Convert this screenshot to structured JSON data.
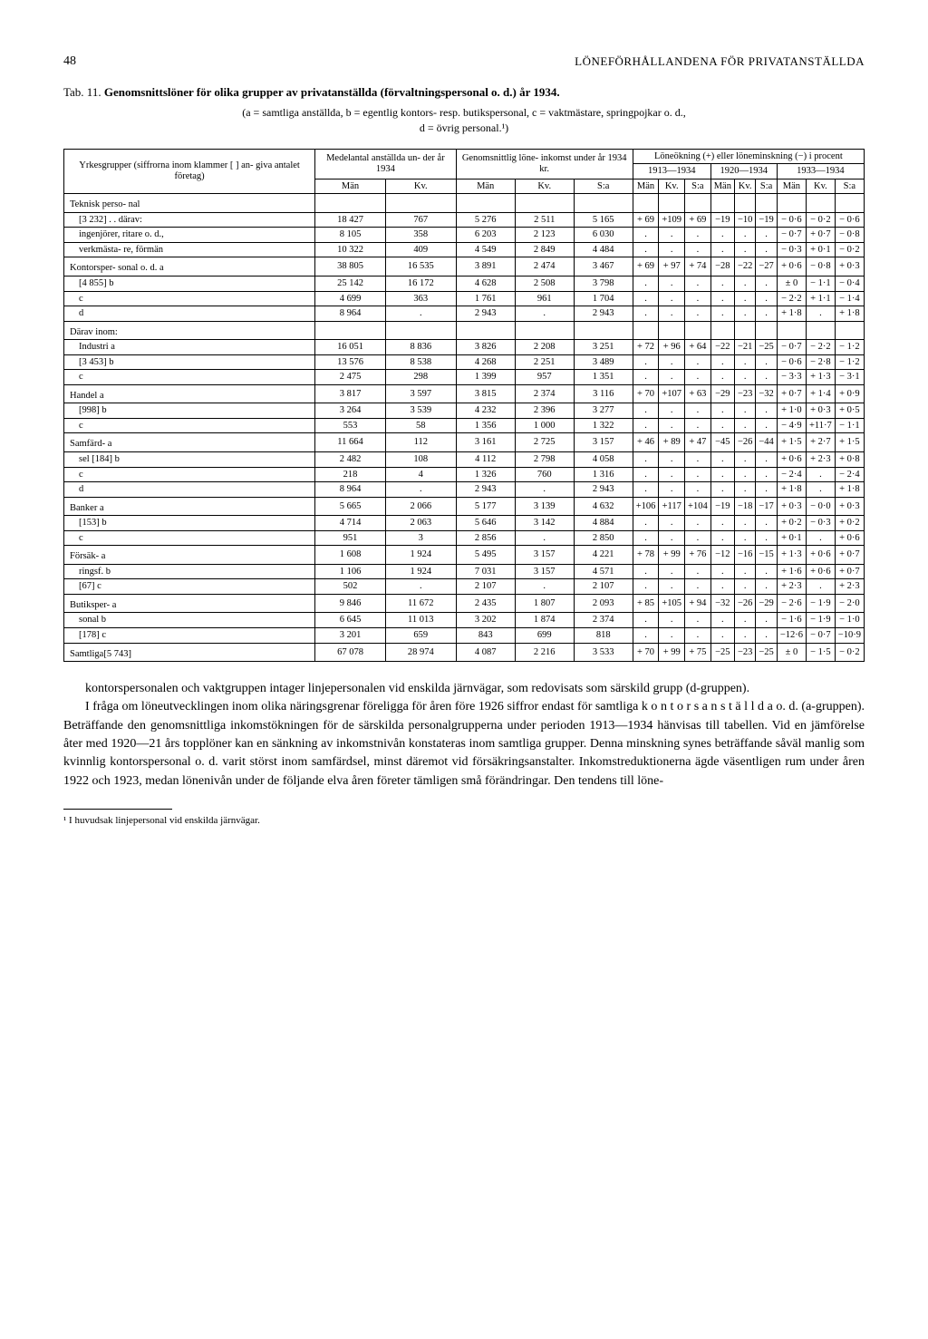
{
  "page_number": "48",
  "running_title": "LÖNEFÖRHÅLLANDENA FÖR PRIVATANSTÄLLDA",
  "tab_label": "Tab. 11.",
  "tab_title": "Genomsnittslöner för olika grupper av privatanställda (förvaltningspersonal o. d.) år 1934.",
  "legend_line1": "(a = samtliga anställda, b = egentlig kontors- resp. butikspersonal, c = vaktmästare, springpojkar o. d.,",
  "legend_line2": "d = övrig personal.¹)",
  "headers": {
    "col1": "Yrkesgrupper (siffrorna inom klammer [ ] an- giva antalet företag)",
    "col2": "Medelantal anställda un- der år 1934",
    "col3": "Genomsnittlig löne- inkomst under år 1934 kr.",
    "col4": "Löneökning (+) eller löneminskning (−) i procent",
    "sub_man": "Män",
    "sub_kv": "Kv.",
    "sub_sa": "S:a",
    "period1": "1913—1934",
    "period2": "1920—1934",
    "period3": "1933—1934"
  },
  "rows": [
    {
      "lbl": "Teknisk perso- nal",
      "cls": "sect",
      "cells": [
        "",
        "",
        "",
        "",
        "",
        "",
        "",
        "",
        "",
        "",
        "",
        "",
        "",
        ""
      ]
    },
    {
      "lbl": "[3 232] . . därav:",
      "cls": "indent",
      "cells": [
        "18 427",
        "767",
        "5 276",
        "2 511",
        "5 165",
        "+ 69",
        "+109",
        "+ 69",
        "−19",
        "−10",
        "−19",
        "− 0·6",
        "− 0·2",
        "− 0·6"
      ]
    },
    {
      "lbl": "ingenjörer, ritare o. d.,",
      "cls": "indent",
      "cells": [
        "8 105",
        "358",
        "6 203",
        "2 123",
        "6 030",
        ".",
        ".",
        ".",
        ".",
        ".",
        ".",
        "− 0·7",
        "+ 0·7",
        "− 0·8"
      ]
    },
    {
      "lbl": "verkmästa- re, förmän",
      "cls": "indent",
      "cells": [
        "10 322",
        "409",
        "4 549",
        "2 849",
        "4 484",
        ".",
        ".",
        ".",
        ".",
        ".",
        ".",
        "− 0·3",
        "+ 0·1",
        "− 0·2"
      ]
    },
    {
      "lbl": "Kontorsper- sonal o. d.   a",
      "cls": "sect",
      "cells": [
        "38 805",
        "16 535",
        "3 891",
        "2 474",
        "3 467",
        "+ 69",
        "+ 97",
        "+ 74",
        "−28",
        "−22",
        "−27",
        "+ 0·6",
        "− 0·8",
        "+ 0·3"
      ]
    },
    {
      "lbl": "[4 855]            b",
      "cls": "indent",
      "cells": [
        "25 142",
        "16 172",
        "4 628",
        "2 508",
        "3 798",
        ".",
        ".",
        ".",
        ".",
        ".",
        ".",
        "± 0",
        "− 1·1",
        "− 0·4"
      ]
    },
    {
      "lbl": "                   c",
      "cls": "indent",
      "cells": [
        "4 699",
        "363",
        "1 761",
        "961",
        "1 704",
        ".",
        ".",
        ".",
        ".",
        ".",
        ".",
        "− 2·2",
        "+ 1·1",
        "− 1·4"
      ]
    },
    {
      "lbl": "                   d",
      "cls": "indent",
      "cells": [
        "8 964",
        ".",
        "2 943",
        ".",
        "2 943",
        ".",
        ".",
        ".",
        ".",
        ".",
        ".",
        "+ 1·8",
        ".",
        "+ 1·8"
      ]
    },
    {
      "lbl": "Därav inom:",
      "cls": "sect",
      "cells": [
        "",
        "",
        "",
        "",
        "",
        "",
        "",
        "",
        "",
        "",
        "",
        "",
        "",
        ""
      ]
    },
    {
      "lbl": "Industri        a",
      "cls": "indent",
      "cells": [
        "16 051",
        "8 836",
        "3 826",
        "2 208",
        "3 251",
        "+ 72",
        "+ 96",
        "+ 64",
        "−22",
        "−21",
        "−25",
        "− 0·7",
        "− 2·2",
        "− 1·2"
      ]
    },
    {
      "lbl": "[3 453]         b",
      "cls": "indent",
      "cells": [
        "13 576",
        "8 538",
        "4 268",
        "2 251",
        "3 489",
        ".",
        ".",
        ".",
        ".",
        ".",
        ".",
        "− 0·6",
        "− 2·8",
        "− 1·2"
      ]
    },
    {
      "lbl": "                c",
      "cls": "indent",
      "cells": [
        "2 475",
        "298",
        "1 399",
        "957",
        "1 351",
        ".",
        ".",
        ".",
        ".",
        ".",
        ".",
        "− 3·3",
        "+ 1·3",
        "− 3·1"
      ]
    },
    {
      "lbl": "Handel          a",
      "cls": "sect",
      "cells": [
        "3 817",
        "3 597",
        "3 815",
        "2 374",
        "3 116",
        "+ 70",
        "+107",
        "+ 63",
        "−29",
        "−23",
        "−32",
        "+ 0·7",
        "+ 1·4",
        "+ 0·9"
      ]
    },
    {
      "lbl": "[998]           b",
      "cls": "indent",
      "cells": [
        "3 264",
        "3 539",
        "4 232",
        "2 396",
        "3 277",
        ".",
        ".",
        ".",
        ".",
        ".",
        ".",
        "+ 1·0",
        "+ 0·3",
        "+ 0·5"
      ]
    },
    {
      "lbl": "                c",
      "cls": "indent",
      "cells": [
        "553",
        "58",
        "1 356",
        "1 000",
        "1 322",
        ".",
        ".",
        ".",
        ".",
        ".",
        ".",
        "− 4·9",
        "+11·7",
        "− 1·1"
      ]
    },
    {
      "lbl": "Samfärd-       a",
      "cls": "sect",
      "cells": [
        "11 664",
        "112",
        "3 161",
        "2 725",
        "3 157",
        "+ 46",
        "+ 89",
        "+ 47",
        "−45",
        "−26",
        "−44",
        "+ 1·5",
        "+ 2·7",
        "+ 1·5"
      ]
    },
    {
      "lbl": "sel [184]      b",
      "cls": "indent",
      "cells": [
        "2 482",
        "108",
        "4 112",
        "2 798",
        "4 058",
        ".",
        ".",
        ".",
        ".",
        ".",
        ".",
        "+ 0·6",
        "+ 2·3",
        "+ 0·8"
      ]
    },
    {
      "lbl": "                c",
      "cls": "indent",
      "cells": [
        "218",
        "4",
        "1 326",
        "760",
        "1 316",
        ".",
        ".",
        ".",
        ".",
        ".",
        ".",
        "− 2·4",
        ".",
        "− 2·4"
      ]
    },
    {
      "lbl": "                d",
      "cls": "indent",
      "cells": [
        "8 964",
        ".",
        "2 943",
        ".",
        "2 943",
        ".",
        ".",
        ".",
        ".",
        ".",
        ".",
        "+ 1·8",
        ".",
        "+ 1·8"
      ]
    },
    {
      "lbl": "Banker         a",
      "cls": "sect",
      "cells": [
        "5 665",
        "2 066",
        "5 177",
        "3 139",
        "4 632",
        "+106",
        "+117",
        "+104",
        "−19",
        "−18",
        "−17",
        "+ 0·3",
        "− 0·0",
        "+ 0·3"
      ]
    },
    {
      "lbl": "[153]          b",
      "cls": "indent",
      "cells": [
        "4 714",
        "2 063",
        "5 646",
        "3 142",
        "4 884",
        ".",
        ".",
        ".",
        ".",
        ".",
        ".",
        "+ 0·2",
        "− 0·3",
        "+ 0·2"
      ]
    },
    {
      "lbl": "                c",
      "cls": "indent",
      "cells": [
        "951",
        "3",
        "2 856",
        ".",
        "2 850",
        ".",
        ".",
        ".",
        ".",
        ".",
        ".",
        "+ 0·1",
        ".",
        "+ 0·6"
      ]
    },
    {
      "lbl": "Försäk-        a",
      "cls": "sect",
      "cells": [
        "1 608",
        "1 924",
        "5 495",
        "3 157",
        "4 221",
        "+ 78",
        "+ 99",
        "+ 76",
        "−12",
        "−16",
        "−15",
        "+ 1·3",
        "+ 0·6",
        "+ 0·7"
      ]
    },
    {
      "lbl": "ringsf.        b",
      "cls": "indent",
      "cells": [
        "1 106",
        "1 924",
        "7 031",
        "3 157",
        "4 571",
        ".",
        ".",
        ".",
        ".",
        ".",
        ".",
        "+ 1·6",
        "+ 0·6",
        "+ 0·7"
      ]
    },
    {
      "lbl": "[67]           c",
      "cls": "indent",
      "cells": [
        "502",
        ".",
        "2 107",
        ".",
        "2 107",
        ".",
        ".",
        ".",
        ".",
        ".",
        ".",
        "+ 2·3",
        ".",
        "+ 2·3"
      ]
    },
    {
      "lbl": "Butiksper-     a",
      "cls": "sect",
      "cells": [
        "9 846",
        "11 672",
        "2 435",
        "1 807",
        "2 093",
        "+ 85",
        "+105",
        "+ 94",
        "−32",
        "−26",
        "−29",
        "− 2·6",
        "− 1·9",
        "− 2·0"
      ]
    },
    {
      "lbl": "sonal          b",
      "cls": "indent",
      "cells": [
        "6 645",
        "11 013",
        "3 202",
        "1 874",
        "2 374",
        ".",
        ".",
        ".",
        ".",
        ".",
        ".",
        "− 1·6",
        "− 1·9",
        "− 1·0"
      ]
    },
    {
      "lbl": "[178]          c",
      "cls": "indent",
      "cells": [
        "3 201",
        "659",
        "843",
        "699",
        "818",
        ".",
        ".",
        ".",
        ".",
        ".",
        ".",
        "−12·6",
        "− 0·7",
        "−10·9"
      ]
    },
    {
      "lbl": "Samtliga[5 743]",
      "cls": "sect",
      "cells": [
        "67 078",
        "28 974",
        "4 087",
        "2 216",
        "3 533",
        "+ 70",
        "+ 99",
        "+ 75",
        "−25",
        "−23",
        "−25",
        "± 0",
        "− 1·5",
        "− 0·2"
      ]
    }
  ],
  "body_paragraphs": [
    "kontorspersonalen och vaktgruppen intager linjepersonalen vid enskilda järnvägar, som redovisats som särskild grupp (d-gruppen).",
    "I fråga om löneutvecklingen inom olika näringsgrenar föreligga för åren före 1926 siffror endast för samtliga k o n t o r s a n s t ä l l d a o. d. (a-gruppen). Beträffande den genomsnittliga inkomstökningen för de särskilda personalgrupperna under perioden 1913—1934 hänvisas till tabellen. Vid en jämförelse åter med 1920—21 års topplöner kan en sänkning av inkomstnivån konstateras inom samtliga grupper. Denna minskning synes beträffande såväl manlig som kvinnlig kontorspersonal o. d. varit störst inom samfärdsel, minst däremot vid försäkringsanstalter. Inkomstreduktionerna ägde väsentligen rum under åren 1922 och 1923, medan lönenivån under de följande elva åren företer tämligen små förändringar. Den tendens till löne-"
  ],
  "footnote": "¹ I huvudsak linjepersonal vid enskilda järnvägar."
}
